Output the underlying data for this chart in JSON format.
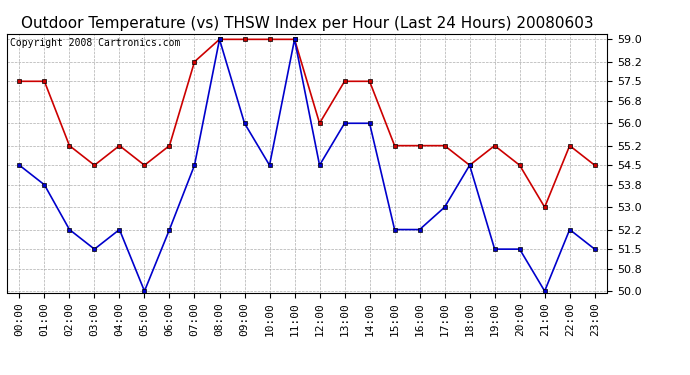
{
  "title": "Outdoor Temperature (vs) THSW Index per Hour (Last 24 Hours) 20080603",
  "copyright": "Copyright 2008 Cartronics.com",
  "hours": [
    "00:00",
    "01:00",
    "02:00",
    "03:00",
    "04:00",
    "05:00",
    "06:00",
    "07:00",
    "08:00",
    "09:00",
    "10:00",
    "11:00",
    "12:00",
    "13:00",
    "14:00",
    "15:00",
    "16:00",
    "17:00",
    "18:00",
    "19:00",
    "20:00",
    "21:00",
    "22:00",
    "23:00"
  ],
  "temp": [
    57.5,
    57.5,
    55.2,
    54.5,
    55.2,
    54.5,
    55.2,
    58.2,
    59.0,
    59.0,
    59.0,
    59.0,
    56.0,
    57.5,
    57.5,
    55.2,
    55.2,
    55.2,
    54.5,
    55.2,
    54.5,
    53.0,
    55.2,
    54.5
  ],
  "thsw": [
    54.5,
    53.8,
    52.2,
    51.5,
    52.2,
    50.0,
    52.2,
    54.5,
    59.0,
    56.0,
    54.5,
    59.0,
    54.5,
    56.0,
    56.0,
    52.2,
    52.2,
    53.0,
    54.5,
    51.5,
    51.5,
    50.0,
    52.2,
    51.5
  ],
  "ylim_min": 50.0,
  "ylim_max": 59.0,
  "yticks": [
    50.0,
    50.8,
    51.5,
    52.2,
    53.0,
    53.8,
    54.5,
    55.2,
    56.0,
    56.8,
    57.5,
    58.2,
    59.0
  ],
  "temp_color": "#cc0000",
  "thsw_color": "#0000cc",
  "bg_color": "#ffffff",
  "plot_bg_color": "#ffffff",
  "grid_color": "#999999",
  "title_fontsize": 11,
  "copyright_fontsize": 7,
  "tick_fontsize": 8
}
